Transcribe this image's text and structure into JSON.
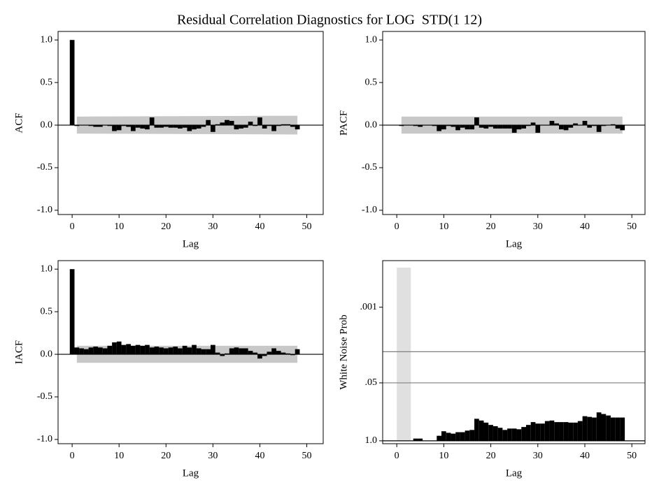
{
  "title": "Residual Correlation Diagnostics for LOG  STD(1 12)",
  "chart_data": [
    {
      "type": "bar",
      "ylabel": "ACF",
      "xlabel": "Lag",
      "x": [
        0,
        1,
        2,
        3,
        4,
        5,
        6,
        7,
        8,
        9,
        10,
        11,
        12,
        13,
        14,
        15,
        16,
        17,
        18,
        19,
        20,
        21,
        22,
        23,
        24,
        25,
        26,
        27,
        28,
        29,
        30,
        31,
        32,
        33,
        34,
        35,
        36,
        37,
        38,
        39,
        40,
        41,
        42,
        43,
        44,
        45,
        46,
        47,
        48
      ],
      "values": [
        1.0,
        -0.01,
        0.0,
        0.0,
        -0.01,
        -0.02,
        -0.02,
        0.0,
        -0.01,
        -0.07,
        -0.06,
        -0.01,
        -0.02,
        -0.07,
        -0.03,
        -0.04,
        -0.05,
        0.09,
        -0.03,
        -0.03,
        -0.02,
        -0.03,
        -0.03,
        -0.04,
        -0.03,
        -0.07,
        -0.05,
        -0.04,
        -0.02,
        0.06,
        -0.08,
        0.01,
        0.03,
        0.06,
        0.05,
        -0.05,
        -0.04,
        -0.03,
        0.04,
        -0.01,
        0.09,
        -0.04,
        -0.01,
        -0.07,
        -0.01,
        0.01,
        0.01,
        -0.02,
        -0.05
      ],
      "color": "#000000",
      "band": {
        "x": [
          1,
          48
        ],
        "upper": [
          0.1,
          0.11
        ],
        "lower": [
          -0.1,
          -0.11
        ],
        "color": "#c8c8c8"
      },
      "baseline": 0,
      "xlim": [
        -3,
        53.5
      ],
      "ylim": [
        -1.05,
        1.1
      ],
      "xticks": [
        0,
        10,
        20,
        30,
        40,
        50
      ],
      "yticks": [
        {
          "value": 1,
          "label": "1.0"
        },
        0.5,
        {
          "value": 0,
          "label": "0.0"
        },
        -0.5,
        {
          "value": -1,
          "label": "-1.0"
        }
      ]
    },
    {
      "type": "bar",
      "ylabel": "PACF",
      "xlabel": "Lag",
      "x": [
        1,
        2,
        3,
        4,
        5,
        6,
        7,
        8,
        9,
        10,
        11,
        12,
        13,
        14,
        15,
        16,
        17,
        18,
        19,
        20,
        21,
        22,
        23,
        24,
        25,
        26,
        27,
        28,
        29,
        30,
        31,
        32,
        33,
        34,
        35,
        36,
        37,
        38,
        39,
        40,
        41,
        42,
        43,
        44,
        45,
        46,
        47,
        48
      ],
      "values": [
        -0.01,
        0.0,
        0.0,
        -0.01,
        -0.02,
        0.0,
        0.0,
        -0.01,
        -0.07,
        -0.05,
        -0.01,
        -0.02,
        -0.06,
        -0.03,
        -0.05,
        -0.05,
        0.09,
        -0.03,
        -0.04,
        -0.02,
        -0.04,
        -0.04,
        -0.04,
        -0.04,
        -0.09,
        -0.05,
        -0.04,
        -0.01,
        0.03,
        -0.09,
        0.0,
        0.0,
        0.05,
        0.02,
        -0.05,
        -0.06,
        -0.03,
        0.02,
        0.0,
        0.05,
        -0.03,
        -0.01,
        -0.08,
        -0.01,
        0.0,
        0.01,
        -0.04,
        -0.06
      ],
      "color": "#000000",
      "band": {
        "x": [
          1,
          48
        ],
        "upper": [
          0.1,
          0.1
        ],
        "lower": [
          -0.1,
          -0.1
        ],
        "color": "#c8c8c8"
      },
      "baseline": 0,
      "xlim": [
        -3,
        52.8
      ],
      "ylim": [
        -1.05,
        1.1
      ],
      "xticks": [
        0,
        10,
        20,
        30,
        40,
        50
      ],
      "yticks": [
        {
          "value": 1,
          "label": "1.0"
        },
        0.5,
        {
          "value": 0,
          "label": "0.0"
        },
        -0.5,
        {
          "value": -1,
          "label": "-1.0"
        }
      ]
    },
    {
      "type": "bar",
      "ylabel": "IACF",
      "xlabel": "Lag",
      "x": [
        0,
        1,
        2,
        3,
        4,
        5,
        6,
        7,
        8,
        9,
        10,
        11,
        12,
        13,
        14,
        15,
        16,
        17,
        18,
        19,
        20,
        21,
        22,
        23,
        24,
        25,
        26,
        27,
        28,
        29,
        30,
        31,
        32,
        33,
        34,
        35,
        36,
        37,
        38,
        39,
        40,
        41,
        42,
        43,
        44,
        45,
        46,
        47,
        48
      ],
      "values": [
        1.0,
        0.08,
        0.07,
        0.06,
        0.08,
        0.09,
        0.08,
        0.07,
        0.1,
        0.14,
        0.15,
        0.11,
        0.12,
        0.1,
        0.11,
        0.1,
        0.11,
        0.08,
        0.09,
        0.08,
        0.07,
        0.08,
        0.09,
        0.07,
        0.1,
        0.08,
        0.11,
        0.07,
        0.06,
        0.06,
        0.11,
        0.02,
        -0.02,
        0.01,
        0.07,
        0.08,
        0.07,
        0.07,
        0.04,
        0.02,
        -0.05,
        -0.02,
        0.03,
        0.07,
        0.04,
        0.02,
        0.01,
        -0.01,
        0.06
      ],
      "color": "#000000",
      "band": {
        "x": [
          1,
          48
        ],
        "upper": [
          0.1,
          0.1
        ],
        "lower": [
          -0.1,
          -0.1
        ],
        "color": "#c8c8c8"
      },
      "baseline": 0,
      "xlim": [
        -3,
        53.5
      ],
      "ylim": [
        -1.05,
        1.1
      ],
      "xticks": [
        0,
        10,
        20,
        30,
        40,
        50
      ],
      "yticks": [
        {
          "value": 1,
          "label": "1.0"
        },
        0.5,
        {
          "value": 0,
          "label": "0.0"
        },
        -0.5,
        {
          "value": -1,
          "label": "-1.0"
        }
      ]
    },
    {
      "type": "bar",
      "ylabel": "White Noise Prob",
      "xlabel": "Lag",
      "x": [
        4,
        5,
        6,
        7,
        8,
        9,
        10,
        11,
        12,
        13,
        14,
        15,
        16,
        17,
        18,
        19,
        20,
        21,
        22,
        23,
        24,
        25,
        26,
        27,
        28,
        29,
        30,
        31,
        32,
        33,
        34,
        35,
        36,
        37,
        38,
        39,
        40,
        41,
        42,
        43,
        44,
        45,
        46,
        47,
        48
      ],
      "values": [
        0.89,
        0.89,
        0.99,
        0.99,
        0.99,
        0.77,
        0.61,
        0.66,
        0.69,
        0.64,
        0.64,
        0.59,
        0.57,
        0.32,
        0.35,
        0.39,
        0.44,
        0.47,
        0.51,
        0.57,
        0.53,
        0.53,
        0.55,
        0.49,
        0.44,
        0.38,
        0.41,
        0.41,
        0.36,
        0.35,
        0.38,
        0.38,
        0.38,
        0.39,
        0.39,
        0.36,
        0.28,
        0.29,
        0.3,
        0.23,
        0.25,
        0.27,
        0.3,
        0.3,
        0.3
      ],
      "color": "#000000",
      "log_scale": true,
      "baseline": 1,
      "ref_lines": [
        0.05,
        0.01
      ],
      "shade_x": [
        0,
        3
      ],
      "xlim": [
        -3,
        52.8
      ],
      "ylim": [
        1.16,
        9e-05
      ],
      "xticks": [
        0,
        10,
        20,
        30,
        40,
        50
      ],
      "yticks": [
        {
          "value": 1,
          "label": "1.0"
        },
        {
          "value": 0.05,
          "label": ".05"
        },
        {
          "value": 0.001,
          "label": ".001"
        }
      ]
    }
  ]
}
